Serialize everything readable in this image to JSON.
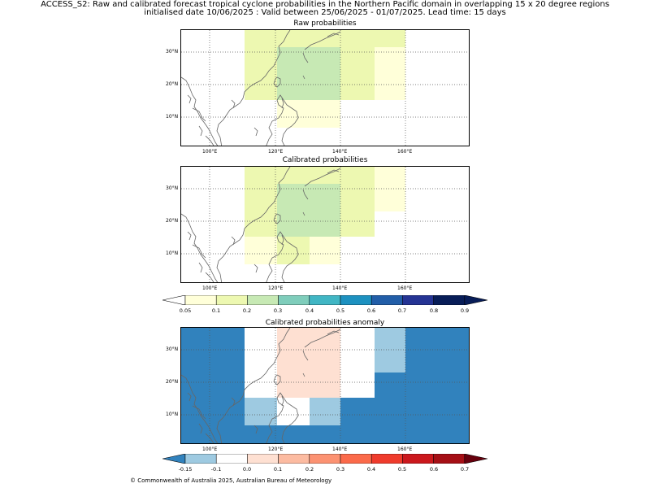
{
  "title": {
    "line1": "ACCESS_S2: Raw and calibrated forecast tropical cyclone probabilities in the Northern Pacific domain in overlapping 15 x 20 degree regions",
    "line2": "initialised date 10/06/2025 :  Valid between 25/06/2025 - 01/07/2025. Lead time: 15 days"
  },
  "panels": [
    {
      "title": "Raw probabilities"
    },
    {
      "title": "Calibrated probabilities"
    },
    {
      "title": "Calibrated probabilities anomaly"
    }
  ],
  "axes": {
    "x_ticks": [
      "100°E",
      "120°E",
      "140°E",
      "160°E"
    ],
    "y_ticks": [
      "30°N",
      "20°N",
      "10°N"
    ]
  },
  "colorbar_prob": {
    "labels": [
      "0.05",
      "0.1",
      "0.2",
      "0.3",
      "0.4",
      "0.5",
      "0.6",
      "0.7",
      "0.8",
      "0.9"
    ],
    "colors": [
      "#ffffd9",
      "#edf8b1",
      "#c7e9b4",
      "#7fcdbb",
      "#41b6c4",
      "#1d91c0",
      "#225ea8",
      "#253494",
      "#081d58"
    ]
  },
  "colorbar_anom": {
    "labels": [
      "-0.15",
      "-0.1",
      "0.0",
      "0.1",
      "0.2",
      "0.3",
      "0.4",
      "0.5",
      "0.6",
      "0.7"
    ],
    "colors": [
      "#9ecae1",
      "#ffffff",
      "#fee0d2",
      "#fcbba1",
      "#fc9272",
      "#fb6a4a",
      "#ef3b2c",
      "#cb181d",
      "#a50f15"
    ],
    "under_color": "#3182bd",
    "over_color": "#67000d"
  },
  "footer": "© Commonwealth of Australia 2025, Australian Bureau of Meteorology"
}
